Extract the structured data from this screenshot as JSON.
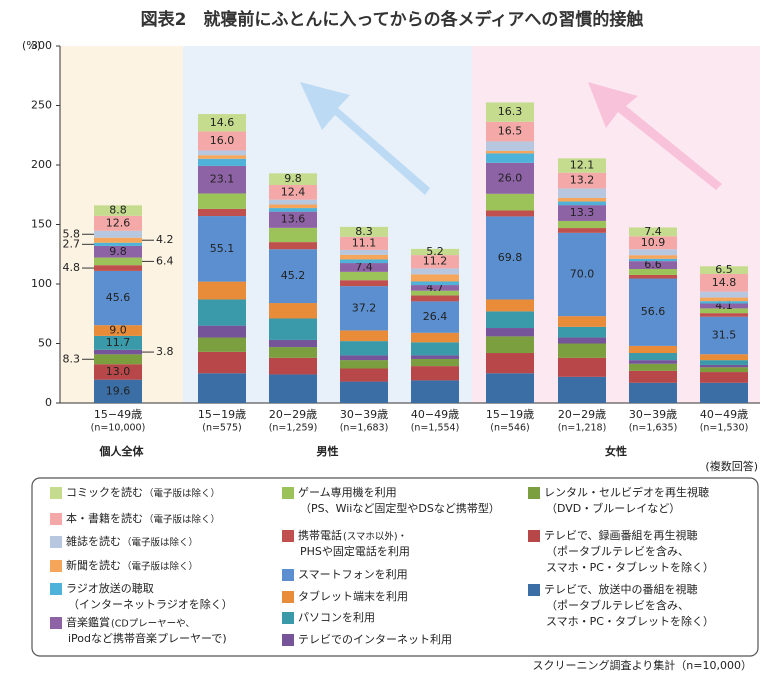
{
  "chart_data": {
    "type": "stacked-bar",
    "title": "図表2　就寝前にふとんに入ってからの各メディアへの習慣的接触",
    "y_label": "(%)",
    "note": "(複数回答)",
    "source": "スクリーニング調査より集計（n=10,000）",
    "ylim": [
      0,
      300
    ],
    "yticks": [
      0,
      50,
      100,
      150,
      200,
      250,
      300
    ],
    "groups": [
      {
        "label": "個人全体",
        "color": "#e0622a",
        "background": "#fdf3e3",
        "categories": [
          "15−49歳"
        ],
        "sample_sizes": [
          "(n=10,000)"
        ]
      },
      {
        "label": "男性",
        "color": "#3b8fd0",
        "background": "#e8f1fa",
        "categories": [
          "15−19歳",
          "20−29歳",
          "30−39歳",
          "40−49歳"
        ],
        "sample_sizes": [
          "(n=575)",
          "(n=1,259)",
          "(n=1,683)",
          "(n=1,554)"
        ]
      },
      {
        "label": "女性",
        "color": "#e0408a",
        "background": "#fce8f0",
        "categories": [
          "15−19歳",
          "20−29歳",
          "30−39歳",
          "40−49歳"
        ],
        "sample_sizes": [
          "(n=546)",
          "(n=1,218)",
          "(n=1,635)",
          "(n=1,530)"
        ]
      }
    ],
    "series": [
      {
        "name": "テレビで、放送中の番組を視聴",
        "note": [
          "（ポータブルテレビを含み、",
          "スマホ・PC・タブレットを除く）"
        ],
        "color": "#3b6ea5",
        "values": [
          19.6,
          25,
          24,
          18,
          19,
          25,
          22,
          17,
          17
        ],
        "value_labels": [
          "19.6",
          null,
          null,
          null,
          null,
          null,
          null,
          null,
          null
        ]
      },
      {
        "name": "テレビで、録画番組を再生視聴",
        "note": [
          "（ポータブルテレビを含み、",
          "スマホ・PC・タブレットを除く）"
        ],
        "color": "#b8474a",
        "values": [
          13.0,
          18,
          14,
          11,
          12,
          17,
          16,
          10,
          9
        ],
        "value_labels": [
          "13.0",
          null,
          null,
          null,
          null,
          null,
          null,
          null,
          null
        ]
      },
      {
        "name": "レンタル・セルビデオを再生視聴",
        "note": [
          "（DVD・ブルーレイなど）"
        ],
        "color": "#7b9e3e",
        "values": [
          8.3,
          12,
          9,
          7,
          6,
          14,
          12,
          6,
          4
        ],
        "value_labels": [
          "8.3",
          null,
          null,
          null,
          null,
          null,
          null,
          null,
          null
        ]
      },
      {
        "name": "テレビでのインターネット利用",
        "color": "#76549a",
        "values": [
          3.8,
          10,
          6,
          4,
          3,
          7,
          5,
          3,
          2
        ],
        "value_labels": [
          "3.8",
          null,
          null,
          null,
          null,
          null,
          null,
          null,
          null
        ]
      },
      {
        "name": "パソコンを利用",
        "color": "#3a9aaa",
        "values": [
          11.7,
          22,
          18,
          12,
          11,
          14,
          9,
          6,
          4
        ],
        "value_labels": [
          "11.7",
          null,
          null,
          null,
          null,
          null,
          null,
          null,
          null
        ]
      },
      {
        "name": "タブレット端末を利用",
        "color": "#e88c3a",
        "values": [
          9.0,
          15,
          13,
          9,
          8,
          10,
          9,
          6,
          5
        ],
        "value_labels": [
          "9.0",
          null,
          null,
          null,
          null,
          null,
          null,
          null,
          null
        ]
      },
      {
        "name": "スマートフォンを利用",
        "color": "#5b8fd0",
        "values": [
          45.6,
          55.1,
          45.2,
          37.2,
          26.4,
          69.8,
          70.0,
          56.6,
          31.5
        ],
        "value_labels": [
          "45.6",
          "55.1",
          "45.2",
          "37.2",
          "26.4",
          "69.8",
          "70.0",
          "56.6",
          "31.5"
        ]
      },
      {
        "name": "携帯電話",
        "name_note": "(スマホ以外)・",
        "note": [
          "PHSや固定電話を利用"
        ],
        "color": "#c0504d",
        "values": [
          4.8,
          6,
          6,
          5,
          5,
          5,
          4,
          3,
          3
        ],
        "value_labels": [
          "4.8",
          null,
          null,
          null,
          null,
          null,
          null,
          null,
          null
        ]
      },
      {
        "name": "ゲーム専用機を利用",
        "note": [
          "（PS、Wiiなど固定型やDSなど携帯型）"
        ],
        "color": "#9bc35a",
        "values": [
          6.4,
          13,
          12,
          7,
          4,
          14,
          6,
          5,
          4
        ],
        "value_labels": [
          "6.4",
          null,
          null,
          null,
          null,
          null,
          null,
          null,
          null
        ]
      },
      {
        "name": "音楽鑑賞",
        "name_note": "(CDプレーヤーや、",
        "note": [
          "iPodなど携帯音楽プレーヤーで)"
        ],
        "color": "#8e63a6",
        "values": [
          9.8,
          23.1,
          13.6,
          7.4,
          4.7,
          26.0,
          13.3,
          6.6,
          4.1
        ],
        "value_labels": [
          "9.8",
          "23.1",
          "13.6",
          "7.4",
          "4.7",
          "26.0",
          "13.3",
          "6.6",
          "4.1"
        ]
      },
      {
        "name": "ラジオ放送の聴取",
        "note": [
          "（インターネットラジオを除く）"
        ],
        "color": "#4fb3d9",
        "values": [
          2.7,
          6,
          3,
          3,
          3,
          8,
          3,
          2,
          2
        ],
        "value_labels": [
          "2.7",
          null,
          null,
          null,
          null,
          null,
          null,
          null,
          null
        ]
      },
      {
        "name": "新聞を読む",
        "name_note": "（電子版は除く）",
        "color": "#f5a65b",
        "values": [
          4.2,
          3,
          3,
          4,
          6,
          2,
          3,
          3,
          3
        ],
        "value_labels": [
          "4.2",
          null,
          null,
          null,
          null,
          null,
          null,
          null,
          null
        ]
      },
      {
        "name": "雑誌を読む",
        "name_note": "（電子版は除く）",
        "color": "#b8c7e0",
        "values": [
          5.8,
          4,
          4,
          4,
          5,
          8,
          8,
          5,
          5
        ],
        "value_labels": [
          "5.8",
          null,
          null,
          null,
          null,
          null,
          null,
          null,
          null
        ]
      },
      {
        "name": "本・書籍を読む",
        "name_note": "（電子版は除く）",
        "color": "#f4a9a8",
        "values": [
          12.6,
          16.0,
          12.4,
          11.1,
          11.2,
          16.5,
          13.2,
          10.9,
          14.8
        ],
        "value_labels": [
          "12.6",
          "16.0",
          "12.4",
          "11.1",
          "11.2",
          "16.5",
          "13.2",
          "10.9",
          "14.8"
        ]
      },
      {
        "name": "コミックを読む",
        "name_note": "（電子版は除く）",
        "color": "#c5dc8e",
        "values": [
          8.8,
          14.6,
          9.8,
          8.3,
          5.2,
          16.3,
          12.1,
          7.4,
          6.5
        ],
        "value_labels": [
          "8.8",
          "14.6",
          "9.8",
          "8.3",
          "5.2",
          "16.3",
          "12.1",
          "7.4",
          "6.5"
        ]
      }
    ]
  }
}
